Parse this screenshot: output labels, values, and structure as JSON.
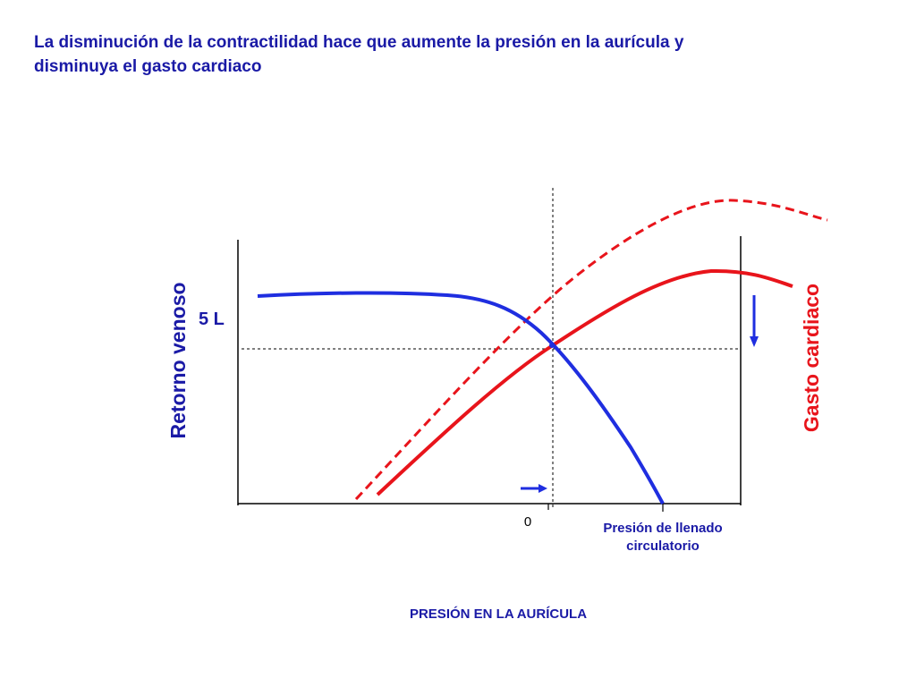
{
  "slide": {
    "title": "La disminución de la contractilidad hace que aumente la  presión en la aurícula y\ndisminuya el gasto cardiaco"
  },
  "diagram": {
    "left_axis_label": "Retorno venoso",
    "right_axis_label": "Gasto cardiaco",
    "level_label": "5 L",
    "zero_label": "0",
    "mcfp_label_line1": "Presión de llenado",
    "mcfp_label_line2": "circulatorio",
    "x_axis_title": "PRESIÓN EN LA AURÍCULA"
  },
  "colors": {
    "venous_return": "#1f2ee0",
    "cardiac_output": "#e8141b",
    "text_blue": "#1a1aa6",
    "text_red": "#e8141b"
  }
}
